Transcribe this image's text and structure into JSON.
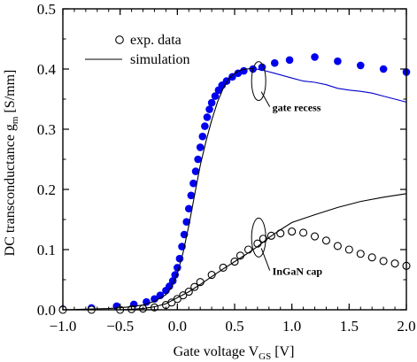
{
  "chart_data": {
    "type": "scatter",
    "xlabel": "Gate voltage V",
    "xlabel_sub": "GS",
    "xlabel_unit": " [V]",
    "ylabel": "DC transconductance g",
    "ylabel_sub": "m",
    "ylabel_unit": " [S/mm]",
    "xlim": [
      -1.0,
      2.0
    ],
    "ylim": [
      0.0,
      0.5
    ],
    "xticks": [
      -1.0,
      -0.5,
      0.0,
      0.5,
      1.0,
      1.5,
      2.0
    ],
    "xtick_labels": [
      "−1.0",
      "−0.5",
      "0.0",
      "0.5",
      "1.0",
      "1.5",
      "2.0"
    ],
    "yticks": [
      0.0,
      0.1,
      0.2,
      0.3,
      0.4,
      0.5
    ],
    "ytick_labels": [
      "0.0",
      "0.1",
      "0.2",
      "0.3",
      "0.4",
      "0.5"
    ],
    "grid": false,
    "legend": {
      "placement": "top-left",
      "entries": [
        {
          "label": "exp. data",
          "marker": "open-circle"
        },
        {
          "label": "simulation",
          "marker": "line"
        }
      ]
    },
    "annotations": [
      {
        "text": "gate recess",
        "x": 0.71,
        "y": 0.38,
        "label_x": 0.83,
        "label_y": 0.33
      },
      {
        "text": "InGaN cap",
        "x": 0.71,
        "y": 0.12,
        "label_x": 0.83,
        "label_y": 0.058
      }
    ],
    "series": [
      {
        "marker": "filled-circle",
        "color": "#0000ee",
        "points": [
          [
            -1.0,
            0.001
          ],
          [
            -0.75,
            0.003
          ],
          [
            -0.53,
            0.006
          ],
          [
            -0.38,
            0.009
          ],
          [
            -0.27,
            0.013
          ],
          [
            -0.2,
            0.018
          ],
          [
            -0.15,
            0.024
          ],
          [
            -0.1,
            0.032
          ],
          [
            -0.07,
            0.039
          ],
          [
            -0.04,
            0.048
          ],
          [
            -0.02,
            0.058
          ],
          [
            0.0,
            0.07
          ],
          [
            0.02,
            0.085
          ],
          [
            0.04,
            0.105
          ],
          [
            0.06,
            0.125
          ],
          [
            0.08,
            0.146
          ],
          [
            0.1,
            0.168
          ],
          [
            0.12,
            0.19
          ],
          [
            0.14,
            0.21
          ],
          [
            0.16,
            0.23
          ],
          [
            0.18,
            0.25
          ],
          [
            0.2,
            0.27
          ],
          [
            0.22,
            0.288
          ],
          [
            0.24,
            0.305
          ],
          [
            0.26,
            0.32
          ],
          [
            0.28,
            0.333
          ],
          [
            0.3,
            0.344
          ],
          [
            0.33,
            0.355
          ],
          [
            0.36,
            0.365
          ],
          [
            0.39,
            0.373
          ],
          [
            0.43,
            0.38
          ],
          [
            0.48,
            0.387
          ],
          [
            0.53,
            0.393
          ],
          [
            0.58,
            0.397
          ],
          [
            0.66,
            0.4
          ],
          [
            0.74,
            0.403
          ],
          [
            0.85,
            0.41
          ],
          [
            0.98,
            0.415
          ],
          [
            1.2,
            0.42
          ],
          [
            1.4,
            0.413
          ],
          [
            1.6,
            0.406
          ],
          [
            1.8,
            0.4
          ],
          [
            2.0,
            0.395
          ]
        ]
      },
      {
        "marker": "open-circle",
        "color": "#000000",
        "points": [
          [
            -1.0,
            0.0
          ],
          [
            -0.75,
            0.0
          ],
          [
            -0.5,
            0.0
          ],
          [
            -0.4,
            0.001
          ],
          [
            -0.3,
            0.002
          ],
          [
            -0.2,
            0.004
          ],
          [
            -0.1,
            0.008
          ],
          [
            -0.05,
            0.012
          ],
          [
            0.0,
            0.018
          ],
          [
            0.05,
            0.024
          ],
          [
            0.1,
            0.03
          ],
          [
            0.15,
            0.038
          ],
          [
            0.2,
            0.046
          ],
          [
            0.3,
            0.058
          ],
          [
            0.4,
            0.07
          ],
          [
            0.5,
            0.08
          ],
          [
            0.55,
            0.09
          ],
          [
            0.62,
            0.1
          ],
          [
            0.7,
            0.11
          ],
          [
            0.75,
            0.118
          ],
          [
            0.82,
            0.123
          ],
          [
            0.9,
            0.127
          ],
          [
            1.0,
            0.13
          ],
          [
            1.1,
            0.128
          ],
          [
            1.2,
            0.122
          ],
          [
            1.3,
            0.115
          ],
          [
            1.4,
            0.106
          ],
          [
            1.5,
            0.1
          ],
          [
            1.6,
            0.093
          ],
          [
            1.7,
            0.087
          ],
          [
            1.8,
            0.081
          ],
          [
            1.9,
            0.077
          ],
          [
            2.0,
            0.073
          ]
        ]
      },
      {
        "marker": "line",
        "color": "#000000",
        "points": [
          [
            -1.0,
            0.0
          ],
          [
            -0.6,
            0.002
          ],
          [
            -0.4,
            0.005
          ],
          [
            -0.3,
            0.008
          ],
          [
            -0.2,
            0.014
          ],
          [
            -0.1,
            0.025
          ],
          [
            -0.05,
            0.038
          ],
          [
            0.0,
            0.06
          ],
          [
            0.05,
            0.095
          ],
          [
            0.1,
            0.14
          ],
          [
            0.15,
            0.19
          ],
          [
            0.2,
            0.24
          ],
          [
            0.25,
            0.28
          ],
          [
            0.3,
            0.315
          ],
          [
            0.35,
            0.345
          ],
          [
            0.4,
            0.368
          ],
          [
            0.45,
            0.384
          ],
          [
            0.5,
            0.393
          ],
          [
            0.55,
            0.398
          ],
          [
            0.6,
            0.4
          ],
          [
            0.66,
            0.401
          ]
        ]
      },
      {
        "marker": "line",
        "color": "#0000cc",
        "points": [
          [
            0.66,
            0.401
          ],
          [
            0.75,
            0.398
          ],
          [
            0.85,
            0.393
          ],
          [
            1.0,
            0.385
          ],
          [
            1.1,
            0.38
          ],
          [
            1.2,
            0.378
          ],
          [
            1.3,
            0.374
          ],
          [
            1.4,
            0.368
          ],
          [
            1.5,
            0.365
          ],
          [
            1.6,
            0.363
          ],
          [
            1.7,
            0.36
          ],
          [
            1.8,
            0.355
          ],
          [
            1.9,
            0.35
          ],
          [
            2.0,
            0.345
          ]
        ]
      },
      {
        "marker": "line",
        "color": "#000000",
        "points": [
          [
            -1.0,
            0.0
          ],
          [
            -0.5,
            0.0
          ],
          [
            -0.3,
            0.002
          ],
          [
            -0.2,
            0.005
          ],
          [
            -0.1,
            0.01
          ],
          [
            0.0,
            0.02
          ],
          [
            0.1,
            0.03
          ],
          [
            0.2,
            0.042
          ],
          [
            0.3,
            0.055
          ],
          [
            0.4,
            0.068
          ],
          [
            0.5,
            0.08
          ],
          [
            0.6,
            0.092
          ],
          [
            0.7,
            0.105
          ],
          [
            0.8,
            0.12
          ],
          [
            0.9,
            0.133
          ],
          [
            1.0,
            0.145
          ],
          [
            1.2,
            0.158
          ],
          [
            1.4,
            0.17
          ],
          [
            1.6,
            0.18
          ],
          [
            1.8,
            0.187
          ],
          [
            2.0,
            0.193
          ]
        ]
      }
    ]
  }
}
